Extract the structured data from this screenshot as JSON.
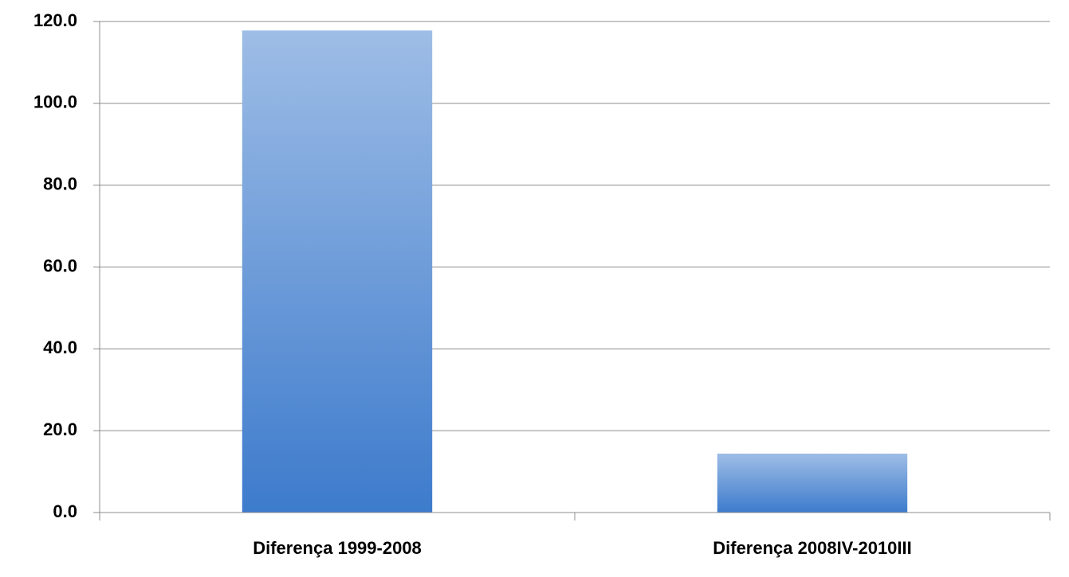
{
  "chart_data": {
    "type": "bar",
    "categories": [
      "Diferença 1999-2008",
      "Diferença 2008IV-2010III"
    ],
    "values": [
      117.8,
      14.4
    ],
    "color": "#3d7bcc",
    "ylim": [
      0,
      120
    ],
    "yticks": [
      {
        "value": 0,
        "label": "0.0"
      },
      {
        "value": 20,
        "label": "20.0"
      },
      {
        "value": 40,
        "label": "40.0"
      },
      {
        "value": 60,
        "label": "60.0"
      },
      {
        "value": 80,
        "label": "80.0"
      },
      {
        "value": 100,
        "label": "100.0"
      },
      {
        "value": 120,
        "label": "120.0"
      }
    ],
    "grid": true
  }
}
